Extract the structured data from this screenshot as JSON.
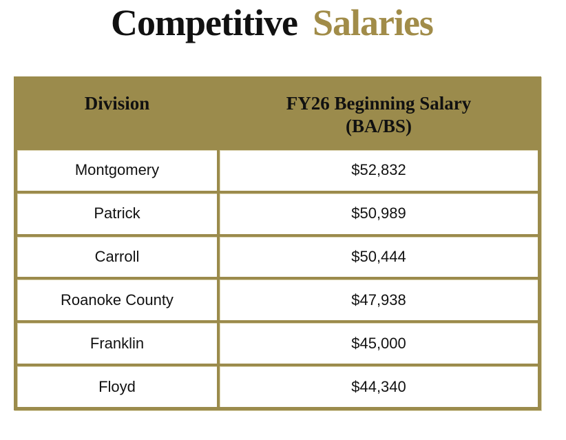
{
  "colors": {
    "gold_fill": "#9b8b4c",
    "gold_title": "#a18c49",
    "text_black": "#111111",
    "border_highlight": "#ddd6b3"
  },
  "title": {
    "text_black": "Competitive",
    "text_gold": "Salaries"
  },
  "table": {
    "columns": [
      {
        "header": "Division"
      },
      {
        "header_line1": "FY26 Beginning Salary",
        "header_line2": "(BA/BS)"
      }
    ],
    "rows": [
      {
        "division": "Montgomery",
        "salary": "$52,832"
      },
      {
        "division": "Patrick",
        "salary": "$50,989"
      },
      {
        "division": "Carroll",
        "salary": "$50,444"
      },
      {
        "division": "Roanoke County",
        "salary": "$47,938"
      },
      {
        "division": "Franklin",
        "salary": "$45,000"
      },
      {
        "division": "Floyd",
        "salary": "$44,340"
      }
    ]
  }
}
